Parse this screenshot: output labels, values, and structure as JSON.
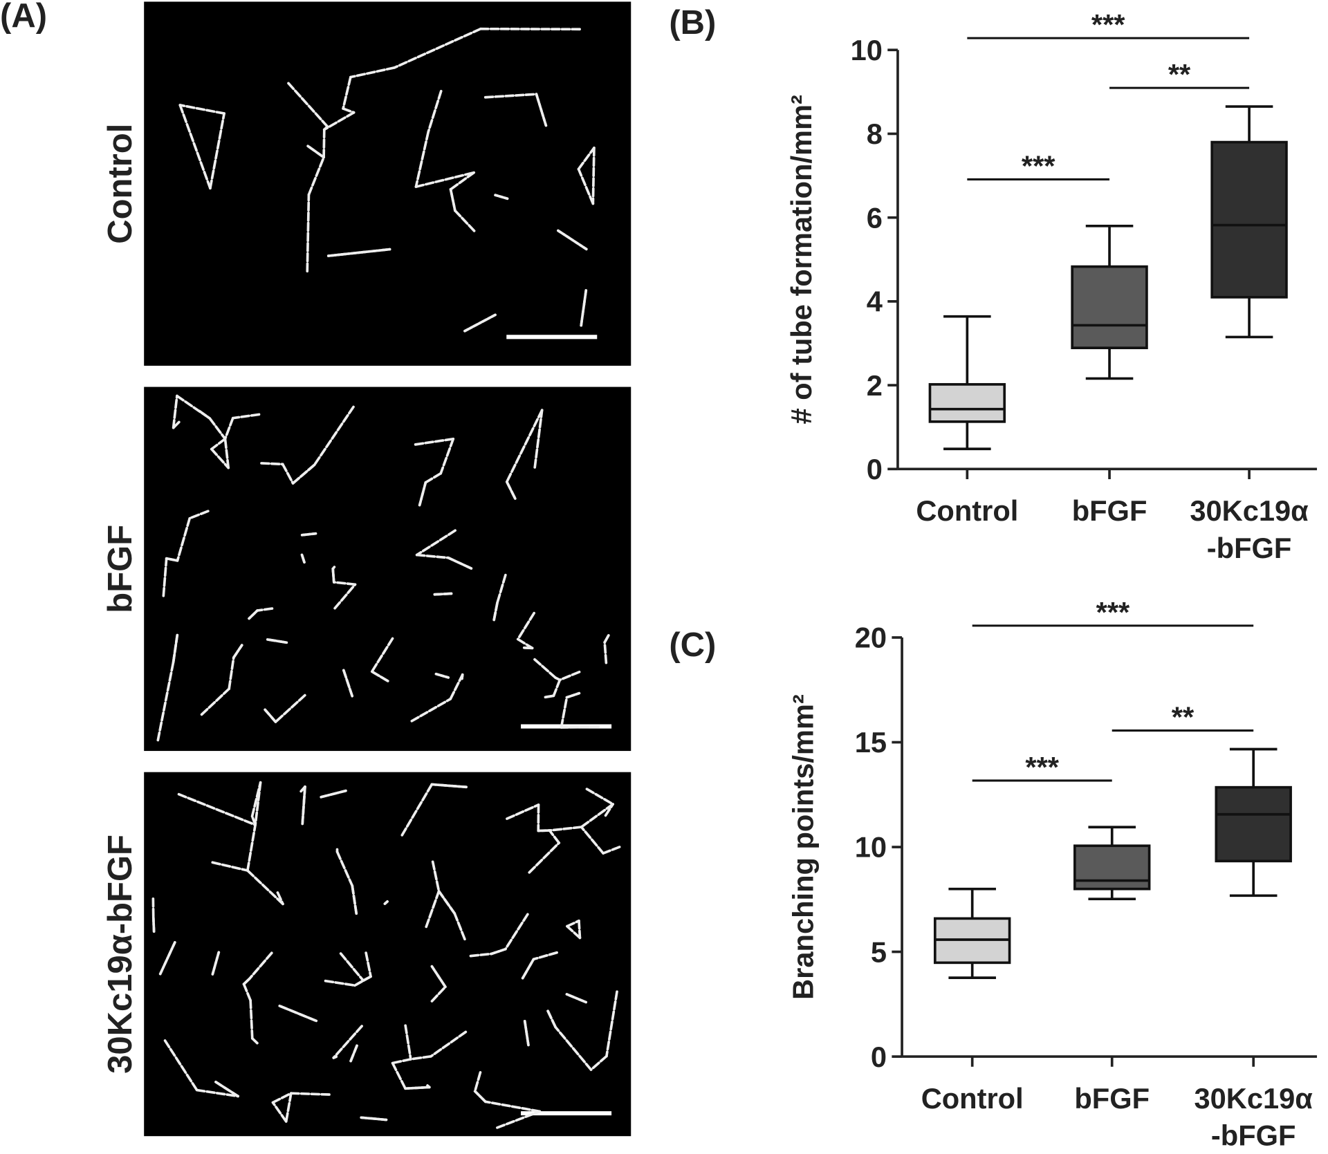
{
  "panel_a": {
    "label": "(A)",
    "rows": [
      "Control",
      "bFGF",
      "30Kc19α-bFGF"
    ]
  },
  "chart_data": [
    {
      "type": "box",
      "panel_label": "(B)",
      "y_label": "# of tube formation/mm²",
      "categories": [
        "Control",
        "bFGF",
        "30Kc19α\n-bFGF"
      ],
      "colors": [
        "#d3d3d3",
        "#5a5a5a",
        "#303030"
      ],
      "boxes": [
        {
          "min": 0.48,
          "q1": 1.13,
          "median": 1.43,
          "q3": 2.02,
          "max": 3.64
        },
        {
          "min": 2.16,
          "q1": 2.89,
          "median": 3.43,
          "q3": 4.83,
          "max": 5.8
        },
        {
          "min": 3.15,
          "q1": 4.1,
          "median": 5.82,
          "q3": 7.8,
          "max": 8.65
        }
      ],
      "ylim": [
        0,
        10
      ],
      "yticks": [
        0,
        2,
        4,
        6,
        8,
        10
      ],
      "annotations": [
        {
          "text": "***",
          "from": 0,
          "to": 2
        },
        {
          "text": "**",
          "from": 1,
          "to": 2
        },
        {
          "text": "***",
          "from": 0,
          "to": 1
        }
      ]
    },
    {
      "type": "box",
      "panel_label": "(C)",
      "y_label": "Branching points/mm²",
      "categories": [
        "Control",
        "bFGF",
        "30Kc19α\n-bFGF"
      ],
      "colors": [
        "#d3d3d3",
        "#5a5a5a",
        "#303030"
      ],
      "boxes": [
        {
          "min": 3.76,
          "q1": 4.48,
          "median": 5.58,
          "q3": 6.59,
          "max": 8.0
        },
        {
          "min": 7.52,
          "q1": 8.0,
          "median": 8.4,
          "q3": 10.06,
          "max": 10.95
        },
        {
          "min": 7.68,
          "q1": 9.33,
          "median": 11.56,
          "q3": 12.85,
          "max": 14.67
        }
      ],
      "ylim": [
        0,
        20
      ],
      "yticks": [
        0,
        5,
        10,
        15,
        20
      ],
      "annotations": [
        {
          "text": "***",
          "from": 0,
          "to": 2
        },
        {
          "text": "**",
          "from": 1,
          "to": 2
        },
        {
          "text": "***",
          "from": 0,
          "to": 1
        }
      ]
    }
  ]
}
